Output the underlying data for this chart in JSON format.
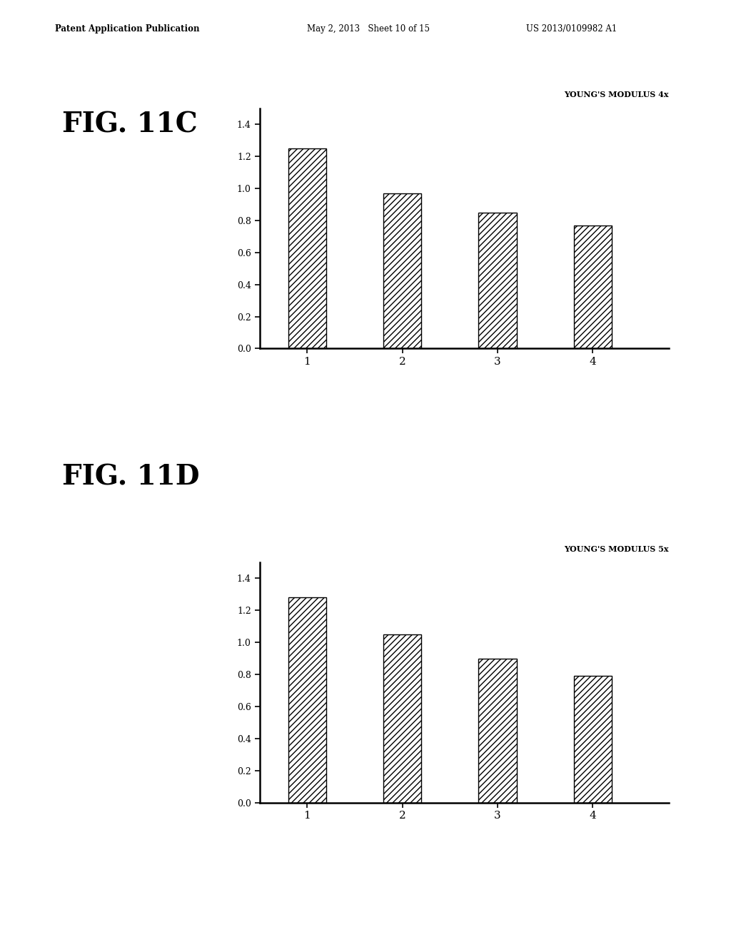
{
  "fig11c": {
    "title": "YOUNG'S MODULUS 4x",
    "values": [
      1.25,
      0.97,
      0.85,
      0.77
    ],
    "categories": [
      "1",
      "2",
      "3",
      "4"
    ],
    "ylim": [
      0,
      1.5
    ],
    "yticks": [
      0.0,
      0.2,
      0.4,
      0.6,
      0.8,
      1.0,
      1.2,
      1.4
    ],
    "label": "FIG. 11C"
  },
  "fig11d": {
    "title": "YOUNG'S MODULUS 5x",
    "values": [
      1.28,
      1.05,
      0.9,
      0.79
    ],
    "categories": [
      "1",
      "2",
      "3",
      "4"
    ],
    "ylim": [
      0,
      1.5
    ],
    "yticks": [
      0.0,
      0.2,
      0.4,
      0.6,
      0.8,
      1.0,
      1.2,
      1.4
    ],
    "label": "FIG. 11D"
  },
  "header_left": "Patent Application Publication",
  "header_mid": "May 2, 2013   Sheet 10 of 15",
  "header_right": "US 2013/0109982 A1",
  "bg_color": "#ffffff",
  "bar_color": "#ffffff",
  "bar_edge_color": "#000000",
  "hatch_pattern": "////",
  "chart_title_fontsize": 8,
  "tick_fontsize": 9,
  "label_fontsize": 28,
  "header_fontsize": 8.5,
  "bar_width": 0.4
}
